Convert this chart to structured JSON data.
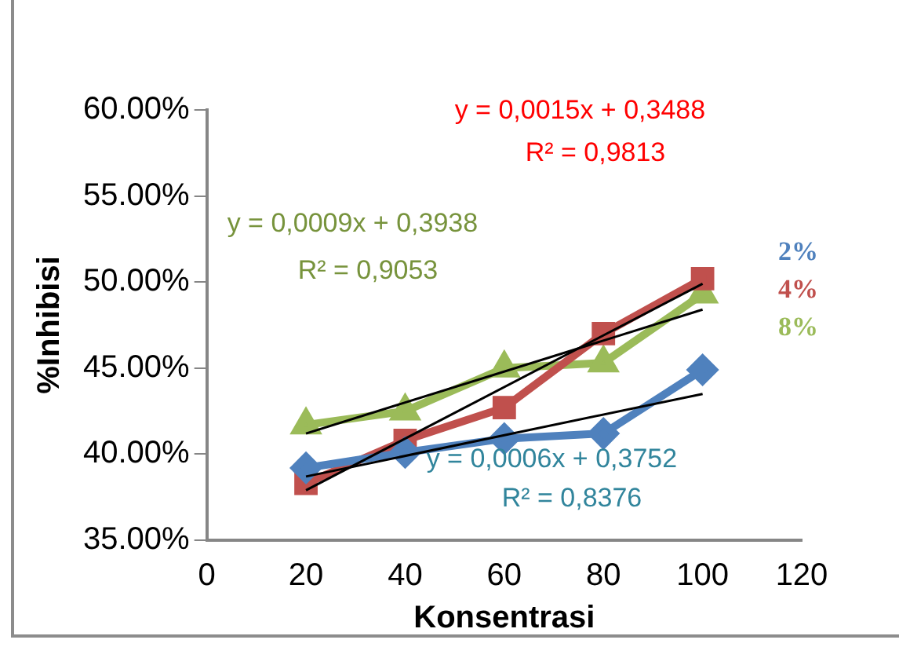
{
  "chart_data": {
    "type": "line",
    "xlabel": "Konsentrasi",
    "ylabel": "%Inhibisi",
    "xlim": [
      0,
      120
    ],
    "xticks": [
      0,
      20,
      40,
      60,
      80,
      100,
      120
    ],
    "ylim": [
      0.35,
      0.6
    ],
    "yticks": [
      {
        "value": 0.35,
        "label": "35.00%"
      },
      {
        "value": 0.4,
        "label": "40.00%"
      },
      {
        "value": 0.45,
        "label": "45.00%"
      },
      {
        "value": 0.5,
        "label": "50.00%"
      },
      {
        "value": 0.55,
        "label": "55.00%"
      },
      {
        "value": 0.6,
        "label": "60.00%"
      }
    ],
    "grid": false,
    "legend": "right",
    "line_style": "solid",
    "series": [
      {
        "name": "2%",
        "color": "#4f81bd",
        "marker": "diamond",
        "x": [
          20,
          40,
          60,
          80,
          100
        ],
        "values": [
          0.392,
          0.401,
          0.409,
          0.412,
          0.449
        ]
      },
      {
        "name": "4%",
        "color": "#c0504d",
        "marker": "square",
        "x": [
          20,
          40,
          60,
          80,
          100
        ],
        "values": [
          0.383,
          0.408,
          0.427,
          0.47,
          0.502
        ]
      },
      {
        "name": "8%",
        "color": "#9bbb59",
        "marker": "triangle",
        "x": [
          20,
          40,
          60,
          80,
          100
        ],
        "values": [
          0.417,
          0.425,
          0.45,
          0.453,
          0.493
        ]
      },
      {
        "color": "#000000",
        "marker": "none",
        "x": [
          20,
          100
        ],
        "values": [
          0.387,
          0.435
        ]
      },
      {
        "color": "#000000",
        "marker": "none",
        "x": [
          20,
          100
        ],
        "values": [
          0.379,
          0.499
        ]
      },
      {
        "color": "#000000",
        "marker": "none",
        "x": [
          20,
          100
        ],
        "values": [
          0.412,
          0.484
        ]
      }
    ],
    "annotations": [
      "y = 0,0015x + 0,3488",
      "R² = 0,9813",
      "y = 0,0009x + 0,3938",
      "R² = 0,9053",
      "y = 0,0006x + 0,3752",
      "R² = 0,8376"
    ]
  }
}
